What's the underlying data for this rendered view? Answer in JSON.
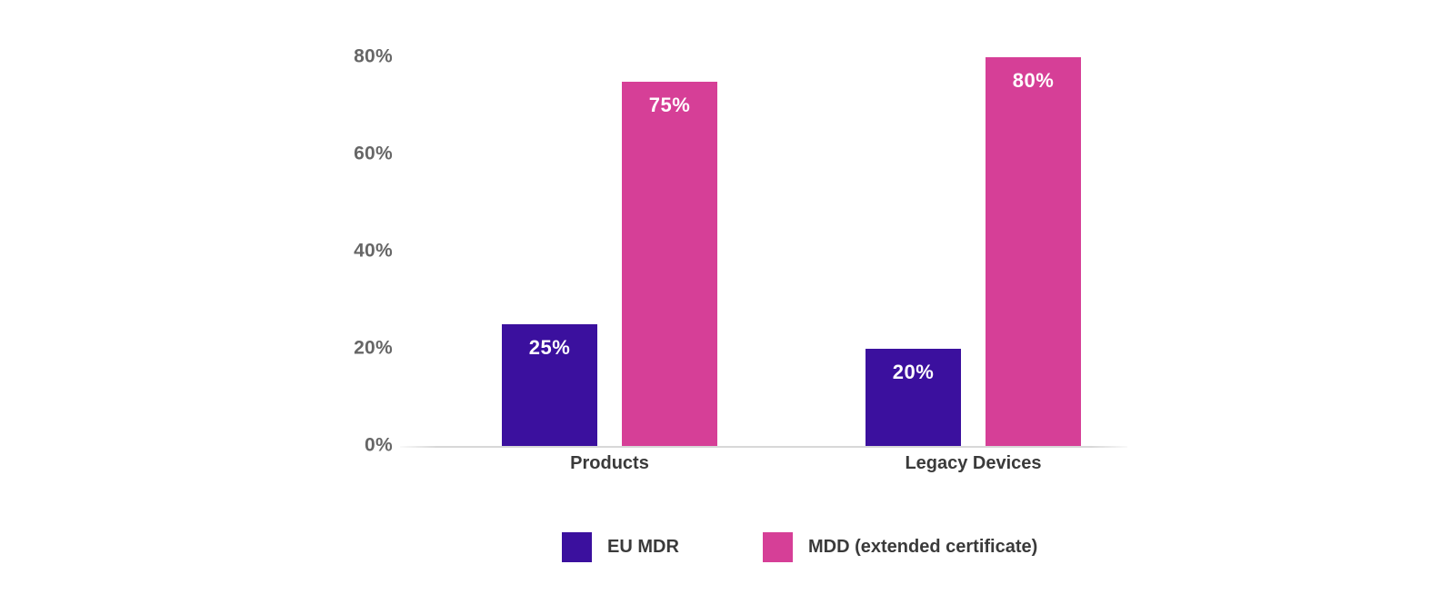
{
  "chart_data": {
    "type": "bar",
    "categories": [
      "Products",
      "Legacy Devices"
    ],
    "series": [
      {
        "name": "EU MDR",
        "color": "#3B109E",
        "values": [
          25,
          20
        ],
        "labels": [
          "25%",
          "20%"
        ]
      },
      {
        "name": "MDD (extended certificate)",
        "color": "#D63F97",
        "values": [
          75,
          80
        ],
        "labels": [
          "75%",
          "80%"
        ]
      }
    ],
    "y_ticks": [
      0,
      20,
      40,
      60,
      80
    ],
    "y_tick_labels": [
      "0%",
      "20%",
      "40%",
      "60%",
      "80%"
    ],
    "ylim": [
      0,
      80
    ],
    "grid": false,
    "legend_position": "bottom"
  },
  "colors": {
    "axis_line": "#d8d8d8",
    "tick_text": "#666666",
    "category_text": "#3a3a3a",
    "data_label_text": "#ffffff",
    "background": "#ffffff"
  }
}
